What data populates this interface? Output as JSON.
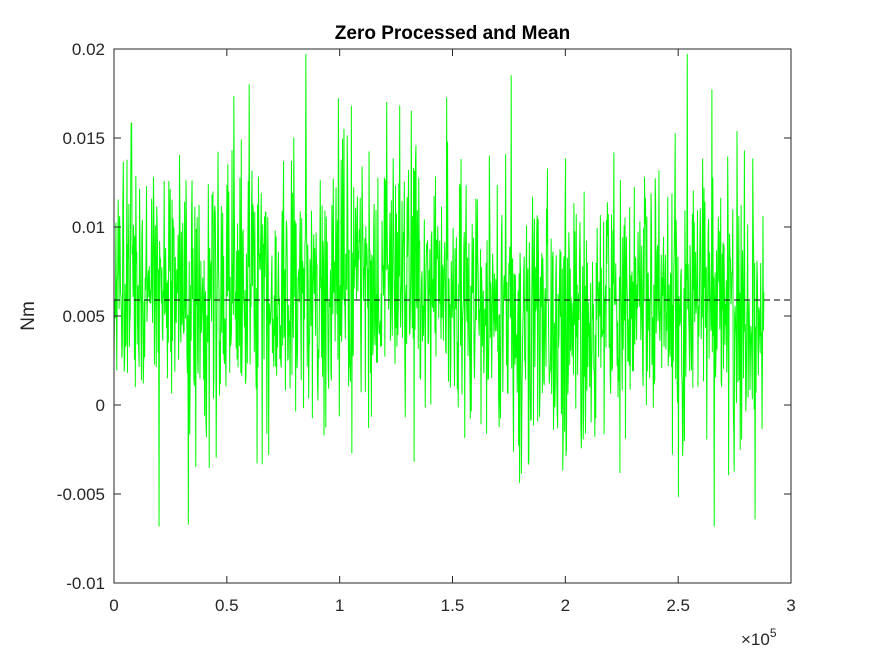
{
  "chart_data": {
    "type": "line",
    "title": "Zero Processed and Mean",
    "xlabel": "",
    "ylabel": "Nm",
    "x_exponent_label": "×10",
    "x_exponent_power": "5",
    "xlim": [
      0,
      3
    ],
    "ylim": [
      -0.01,
      0.02
    ],
    "x_scale_factor": 100000,
    "xticks": [
      0,
      0.5,
      1,
      1.5,
      2,
      2.5,
      3
    ],
    "xtick_labels": [
      "0",
      "0.5",
      "1",
      "1.5",
      "2",
      "2.5",
      "3"
    ],
    "yticks": [
      -0.01,
      -0.005,
      0,
      0.005,
      0.01,
      0.015,
      0.02
    ],
    "ytick_labels": [
      "-0.01",
      "-0.005",
      "0",
      "0.005",
      "0.01",
      "0.015",
      "0.02"
    ],
    "grid": false,
    "series": [
      {
        "color": "#00ff00",
        "x_start": 0,
        "x_end": 2.88,
        "approx_mean": 0.0059,
        "approx_min": -0.0068,
        "approx_max": 0.0197,
        "peaks": [
          {
            "x": 0.85,
            "y": 0.0197
          },
          {
            "x": 2.54,
            "y": 0.0197
          },
          {
            "x": 1.76,
            "y": 0.0185
          },
          {
            "x": 0.6,
            "y": 0.018
          },
          {
            "x": 2.65,
            "y": 0.0177
          },
          {
            "x": 0.2,
            "y": -0.0068
          },
          {
            "x": 0.33,
            "y": -0.0067
          },
          {
            "x": 2.66,
            "y": -0.0068
          },
          {
            "x": 2.84,
            "y": -0.0064
          }
        ]
      },
      {
        "name": "",
        "color": "#000000",
        "style": "dashed",
        "constant_y": 0.0059
      }
    ]
  }
}
